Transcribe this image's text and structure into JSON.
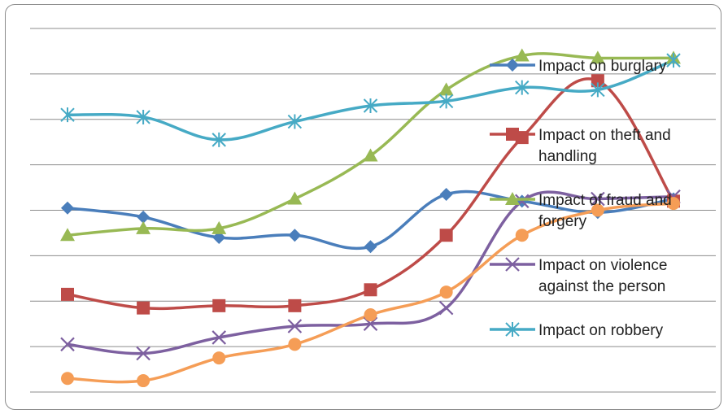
{
  "chart_data": {
    "type": "line",
    "title": "",
    "xlabel": "",
    "ylabel": "",
    "ylim": [
      0,
      8
    ],
    "grid": true,
    "legend_position": "right",
    "x": [
      1,
      2,
      3,
      4,
      5,
      6,
      7,
      8,
      9
    ],
    "series": [
      {
        "name": "Impact on burglary",
        "color": "#4a7ebb",
        "marker": "diamond",
        "legend_lines": [
          "Impact on burglary"
        ],
        "values": [
          4.05,
          3.85,
          3.4,
          3.45,
          3.2,
          4.35,
          4.2,
          3.95,
          4.25
        ]
      },
      {
        "name": "Impact on theft and handling",
        "color": "#be4b48",
        "marker": "square",
        "legend_lines": [
          "Impact on theft and",
          "handling"
        ],
        "values": [
          2.15,
          1.85,
          1.9,
          1.9,
          2.25,
          3.45,
          5.6,
          6.85,
          4.2
        ]
      },
      {
        "name": "Impact of fraud and forgery",
        "color": "#98b954",
        "marker": "triangle",
        "legend_lines": [
          "Impact of fraud and",
          "forgery"
        ],
        "values": [
          3.45,
          3.6,
          3.6,
          4.25,
          5.2,
          6.65,
          7.4,
          7.35,
          7.35
        ]
      },
      {
        "name": "Impact on violence against the person",
        "color": "#7d60a0",
        "marker": "x",
        "legend_lines": [
          "Impact on violence",
          "against the person"
        ],
        "values": [
          1.05,
          0.85,
          1.2,
          1.45,
          1.5,
          1.85,
          4.2,
          4.25,
          4.3
        ]
      },
      {
        "name": "Impact on robbery",
        "color": "#46aac5",
        "marker": "star",
        "legend_lines": [
          "Impact on robbery"
        ],
        "values": [
          6.1,
          6.05,
          5.55,
          5.95,
          6.3,
          6.4,
          6.7,
          6.65,
          7.3
        ]
      }
    ],
    "extra_series": [
      {
        "color": "#f59d56",
        "marker": "circle",
        "values": [
          0.3,
          0.25,
          0.75,
          1.05,
          1.7,
          2.2,
          3.45,
          4.0,
          4.15
        ]
      }
    ]
  }
}
